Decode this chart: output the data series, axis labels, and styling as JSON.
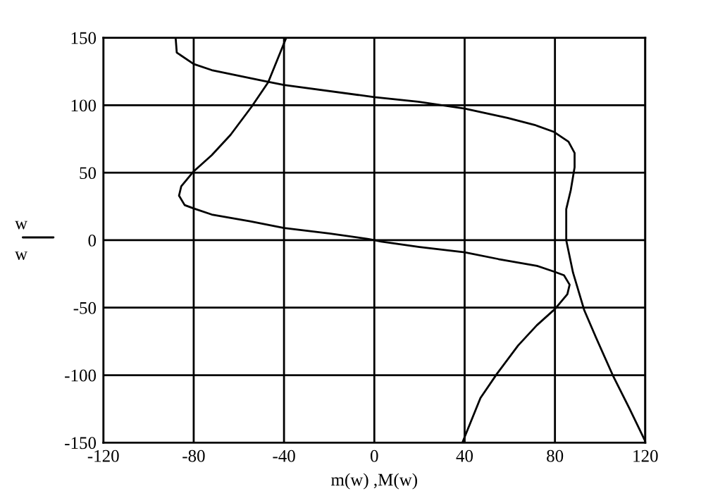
{
  "chart_data": {
    "type": "line",
    "xlabel": "m(w) ,M(w)",
    "ylabel": "w\nw",
    "xlim": [
      -120,
      120
    ],
    "xticks": [
      -120,
      -80,
      -40,
      0,
      40,
      80,
      120
    ],
    "ylim": [
      -150,
      150
    ],
    "yticks": [
      -150,
      -100,
      -50,
      0,
      50,
      100,
      150
    ],
    "grid": true,
    "legend": false,
    "line_style": "solid",
    "marker": "none",
    "series": [
      {
        "color": "#000000",
        "x": [
          -39,
          -47,
          -54.3,
          -63.7,
          -72,
          -80,
          -85.5,
          -86.5,
          -84,
          -80,
          -72,
          -55,
          -40,
          -20,
          -3,
          0,
          3,
          20,
          40,
          55,
          72,
          80,
          84,
          86.5,
          85.5,
          80,
          72,
          63.7,
          54.3,
          47,
          39
        ],
        "values": [
          150,
          117,
          99,
          78,
          63,
          51,
          40,
          33,
          26,
          23.5,
          19,
          14,
          9,
          5,
          1,
          0,
          -1,
          -5,
          -9,
          -14,
          -19,
          -23.5,
          -26,
          -33,
          -40,
          -51,
          -63,
          -78,
          -99,
          -117,
          -150
        ]
      },
      {
        "color": "#000000",
        "x": [
          -88,
          -87.5,
          -80,
          -72,
          -49,
          -40,
          0,
          19.4,
          40,
          59,
          71,
          79.6,
          86,
          88.7,
          88.7,
          87,
          85,
          85,
          88,
          93,
          98.3,
          105.6,
          113,
          120
        ],
        "values": [
          150,
          139,
          130.5,
          126,
          118,
          115,
          106,
          102.6,
          97.5,
          90.6,
          85.4,
          80.2,
          73,
          64.6,
          54,
          37,
          23,
          0,
          -24,
          -52,
          -72.6,
          -100,
          -124.7,
          -149
        ]
      }
    ]
  }
}
